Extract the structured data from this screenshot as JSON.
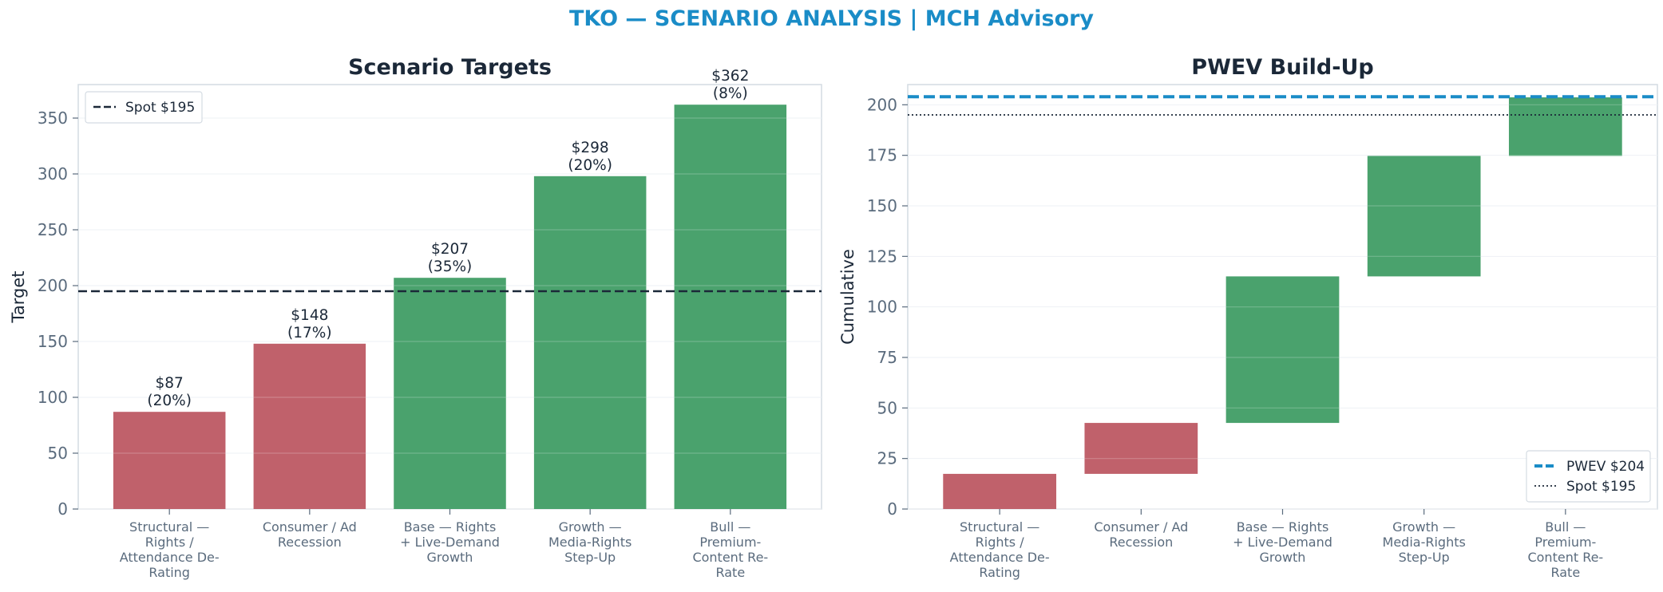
{
  "suptitle": "TKO — SCENARIO ANALYSIS | MCH Advisory",
  "colors": {
    "title": "#1a8cc7",
    "down": "#c0616b",
    "up": "#4aa26d",
    "spot": "#1b2838",
    "pwev": "#1a8cc7",
    "axis_text": "#5a6b7d",
    "heading": "#1b2838"
  },
  "chart_data": [
    {
      "type": "bar",
      "title": "Scenario Targets",
      "xlabel": "",
      "ylabel": "Target",
      "ylim": [
        0,
        380
      ],
      "yticks": [
        0,
        50,
        100,
        150,
        200,
        250,
        300,
        350
      ],
      "grid": true,
      "categories": [
        "Structural — Rights / Attendance De-Rating",
        "Consumer / Ad Recession",
        "Base — Rights + Live-Demand Growth",
        "Growth — Media-Rights Step-Up",
        "Bull — Premium-Content Re-Rate"
      ],
      "category_lines": [
        [
          "Structural —",
          "Rights /",
          "Attendance De-",
          "Rating"
        ],
        [
          "Consumer / Ad",
          "Recession"
        ],
        [
          "Base — Rights",
          "+ Live-Demand",
          "Growth"
        ],
        [
          "Growth —",
          "Media-Rights",
          "Step-Up"
        ],
        [
          "Bull —",
          "Premium-",
          "Content Re-",
          "Rate"
        ]
      ],
      "values": [
        87,
        148,
        207,
        298,
        362
      ],
      "value_labels": [
        "$87",
        "$148",
        "$207",
        "$298",
        "$362"
      ],
      "probability_labels": [
        "(20%)",
        "(17%)",
        "(35%)",
        "(20%)",
        "(8%)"
      ],
      "bar_colors": [
        "#c0616b",
        "#c0616b",
        "#4aa26d",
        "#4aa26d",
        "#4aa26d"
      ],
      "reference_line": {
        "value": 195,
        "label": "Spot $195",
        "style": "dashed"
      },
      "legend": {
        "placement": "top-left",
        "entries": [
          "Spot $195"
        ]
      }
    },
    {
      "type": "bar",
      "subtype": "waterfall",
      "title": "PWEV Build-Up",
      "xlabel": "",
      "ylabel": "Cumulative",
      "ylim": [
        0,
        210
      ],
      "yticks": [
        0,
        25,
        50,
        75,
        100,
        125,
        150,
        175,
        200
      ],
      "grid": true,
      "categories": [
        "Structural — Rights / Attendance De-Rating",
        "Consumer / Ad Recession",
        "Base — Rights + Live-Demand Growth",
        "Growth — Media-Rights Step-Up",
        "Bull — Premium-Content Re-Rate"
      ],
      "category_lines": [
        [
          "Structural —",
          "Rights /",
          "Attendance De-",
          "Rating"
        ],
        [
          "Consumer / Ad",
          "Recession"
        ],
        [
          "Base — Rights",
          "+ Live-Demand",
          "Growth"
        ],
        [
          "Growth —",
          "Media-Rights",
          "Step-Up"
        ],
        [
          "Bull —",
          "Premium-",
          "Content Re-",
          "Rate"
        ]
      ],
      "increments": [
        17.4,
        25.2,
        72.5,
        59.6,
        29.0
      ],
      "cumulative": [
        17.4,
        42.6,
        115.1,
        174.7,
        203.7
      ],
      "bar_colors": [
        "#c0616b",
        "#c0616b",
        "#4aa26d",
        "#4aa26d",
        "#4aa26d"
      ],
      "reference_lines": [
        {
          "value": 204,
          "label": "PWEV $204",
          "style": "dashed"
        },
        {
          "value": 195,
          "label": "Spot $195",
          "style": "dotted"
        }
      ],
      "legend": {
        "placement": "bottom-right",
        "entries": [
          "PWEV $204",
          "Spot $195"
        ]
      }
    }
  ]
}
